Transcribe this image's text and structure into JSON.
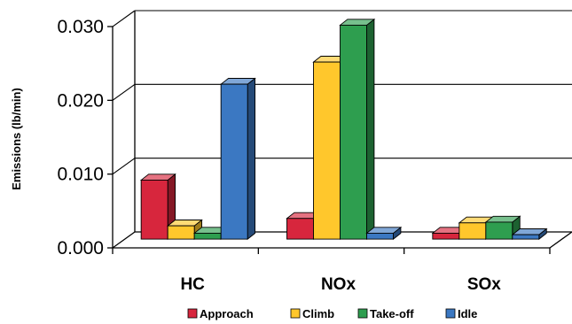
{
  "chart_data": {
    "type": "bar",
    "title": "",
    "xlabel": "",
    "ylabel": "Emissions (lb/min)",
    "ylim": [
      0,
      0.03
    ],
    "yticks": [
      "0.000",
      "0.010",
      "0.020",
      "0.030"
    ],
    "ytick_values": [
      0,
      0.01,
      0.02,
      0.03
    ],
    "grid": true,
    "legend_position": "bottom",
    "categories": [
      "HC",
      "NOx",
      "SOx"
    ],
    "series": [
      {
        "name": "Approach",
        "values": [
          0.008,
          0.0028,
          0.0008
        ],
        "color": "#d7263d"
      },
      {
        "name": "Climb",
        "values": [
          0.0018,
          0.024,
          0.0022
        ],
        "color": "#ffc72c"
      },
      {
        "name": "Take-off",
        "values": [
          0.0008,
          0.029,
          0.0023
        ],
        "color": "#2e9e4f"
      },
      {
        "name": "Idle",
        "values": [
          0.021,
          0.0008,
          0.0006
        ],
        "color": "#3b78c2"
      }
    ]
  }
}
